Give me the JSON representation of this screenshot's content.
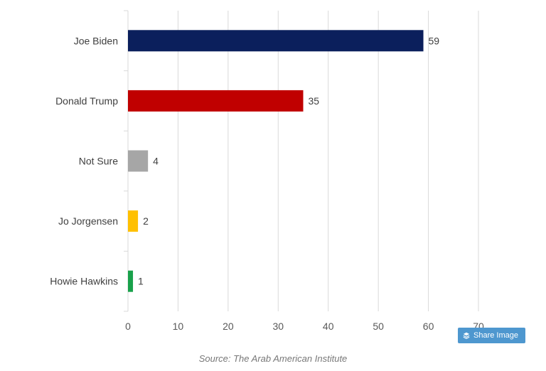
{
  "chart_data": {
    "type": "bar",
    "orientation": "horizontal",
    "categories": [
      "Joe Biden",
      "Donald Trump",
      "Not Sure",
      "Jo Jorgensen",
      "Howie Hawkins"
    ],
    "values": [
      59,
      35,
      4,
      2,
      1
    ],
    "colors": [
      "#0b1f5c",
      "#c00000",
      "#a6a6a6",
      "#ffc000",
      "#19a14b"
    ],
    "xlim": [
      0,
      70
    ],
    "x_ticks": [
      "0",
      "10",
      "20",
      "30",
      "40",
      "50",
      "60",
      "70"
    ],
    "grid": "vertical",
    "data_labels": true,
    "title": "",
    "xlabel": "",
    "ylabel": ""
  },
  "share": {
    "label": "Share Image",
    "icon": "layers-icon",
    "color": "#4e97cf"
  },
  "source": {
    "text": "Source: The Arab American Institute"
  }
}
